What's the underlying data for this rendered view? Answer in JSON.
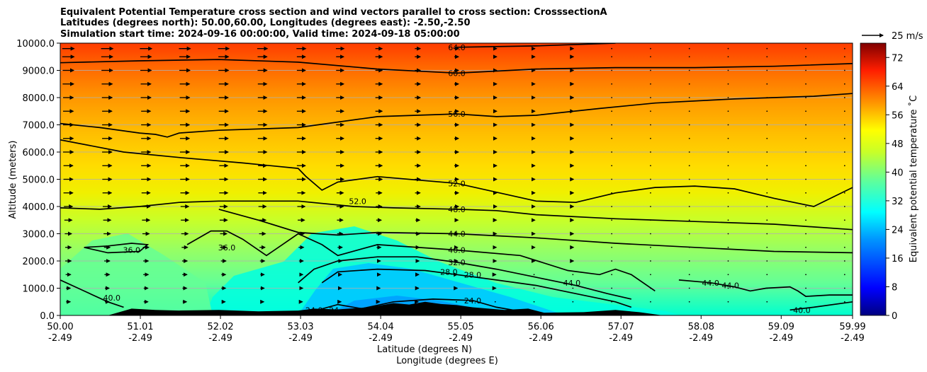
{
  "chart_data": {
    "type": "filled-contour cross section with contour lines and wind vectors",
    "title_lines": [
      "Equivalent Potential Temperature cross section and wind vectors parallel to cross section: CrosssectionA",
      "Latitudes (degrees north): 50.00,60.00, Longitudes (degrees east): -2.50,-2.50",
      "Simulation start time: 2024-09-16 00:00:00, Valid time: 2024-09-18 05:00:00"
    ],
    "xlabel_1": "Latitude (degrees N)",
    "xlabel_2": "Longitude (degrees E)",
    "ylabel": "Altitude (meters)",
    "xlim": [
      50.0,
      59.99
    ],
    "ylim": [
      0,
      10000
    ],
    "x_ticks": [
      {
        "lat": "50.00",
        "lon": "-2.49",
        "value": 50.0
      },
      {
        "lat": "51.01",
        "lon": "-2.49",
        "value": 51.01
      },
      {
        "lat": "52.02",
        "lon": "-2.49",
        "value": 52.02
      },
      {
        "lat": "53.03",
        "lon": "-2.49",
        "value": 53.03
      },
      {
        "lat": "54.04",
        "lon": "-2.49",
        "value": 54.04
      },
      {
        "lat": "55.05",
        "lon": "-2.49",
        "value": 55.05
      },
      {
        "lat": "56.06",
        "lon": "-2.49",
        "value": 56.06
      },
      {
        "lat": "57.07",
        "lon": "-2.49",
        "value": 57.07
      },
      {
        "lat": "58.08",
        "lon": "-2.49",
        "value": 58.08
      },
      {
        "lat": "59.09",
        "lon": "-2.49",
        "value": 59.09
      },
      {
        "lat": "59.99",
        "lon": "-2.49",
        "value": 59.99
      }
    ],
    "y_ticks": [
      {
        "label": "0.0",
        "value": 0
      },
      {
        "label": "1000.0",
        "value": 1000
      },
      {
        "label": "2000.0",
        "value": 2000
      },
      {
        "label": "3000.0",
        "value": 3000
      },
      {
        "label": "4000.0",
        "value": 4000
      },
      {
        "label": "5000.0",
        "value": 5000
      },
      {
        "label": "6000.0",
        "value": 6000
      },
      {
        "label": "7000.0",
        "value": 7000
      },
      {
        "label": "8000.0",
        "value": 8000
      },
      {
        "label": "9000.0",
        "value": 9000
      },
      {
        "label": "10000.0",
        "value": 10000
      }
    ],
    "colorbar": {
      "label": "Equivalent potential temperature ˚C",
      "range": [
        0,
        76
      ],
      "ticks": [
        "0",
        "8",
        "16",
        "24",
        "32",
        "40",
        "48",
        "56",
        "64",
        "72"
      ]
    },
    "quiver_key": {
      "label": "25 m/s",
      "speed": 25
    },
    "contour_labels": [
      {
        "text": "64.0",
        "lat": 55.0,
        "alt": 9850
      },
      {
        "text": "60.0",
        "lat": 55.0,
        "alt": 8900
      },
      {
        "text": "56.0",
        "lat": 55.0,
        "alt": 7400
      },
      {
        "text": "52.0",
        "lat": 55.0,
        "alt": 4850
      },
      {
        "text": "48.0",
        "lat": 55.0,
        "alt": 3900
      },
      {
        "text": "44.0",
        "lat": 55.0,
        "alt": 3000
      },
      {
        "text": "40.0",
        "lat": 55.0,
        "alt": 2400
      },
      {
        "text": "32.0",
        "lat": 55.0,
        "alt": 1950
      },
      {
        "text": "28.0",
        "lat": 54.9,
        "alt": 1600
      },
      {
        "text": "28.0",
        "lat": 55.2,
        "alt": 1500
      },
      {
        "text": "24.0",
        "lat": 55.2,
        "alt": 550
      },
      {
        "text": "24.0",
        "lat": 53.2,
        "alt": 200
      },
      {
        "text": "24",
        "lat": 53.45,
        "alt": 200
      },
      {
        "text": "52.0",
        "lat": 53.75,
        "alt": 4200
      },
      {
        "text": "36.0",
        "lat": 52.1,
        "alt": 2500
      },
      {
        "text": "36.0",
        "lat": 50.9,
        "alt": 2400
      },
      {
        "text": "40.0",
        "lat": 50.65,
        "alt": 650
      },
      {
        "text": "44.0",
        "lat": 56.45,
        "alt": 1200
      },
      {
        "text": "44.0",
        "lat": 58.2,
        "alt": 1200
      },
      {
        "text": "44.0",
        "lat": 58.45,
        "alt": 1100
      },
      {
        "text": "40.0",
        "lat": 59.35,
        "alt": 200
      }
    ],
    "contour_lines": [
      {
        "level": 64,
        "points": [
          [
            55.0,
            9850
          ],
          [
            56.0,
            9900
          ],
          [
            57.0,
            10000
          ]
        ]
      },
      {
        "level": 60,
        "points": [
          [
            50.0,
            9280
          ],
          [
            51.0,
            9350
          ],
          [
            52.0,
            9400
          ],
          [
            53.0,
            9300
          ],
          [
            54.0,
            9050
          ],
          [
            55.0,
            8900
          ],
          [
            56.0,
            9050
          ],
          [
            57.0,
            9100
          ],
          [
            58.0,
            9100
          ],
          [
            59.0,
            9150
          ],
          [
            59.99,
            9250
          ]
        ]
      },
      {
        "level": 56,
        "points": [
          [
            50.0,
            7050
          ],
          [
            50.5,
            6900
          ],
          [
            51.0,
            6700
          ],
          [
            51.2,
            6650
          ],
          [
            51.35,
            6550
          ],
          [
            51.5,
            6700
          ],
          [
            52.0,
            6800
          ],
          [
            53.0,
            6900
          ],
          [
            54.0,
            7300
          ],
          [
            55.0,
            7400
          ],
          [
            55.5,
            7300
          ],
          [
            56.0,
            7350
          ],
          [
            56.8,
            7600
          ],
          [
            57.5,
            7800
          ],
          [
            58.5,
            7950
          ],
          [
            59.5,
            8050
          ],
          [
            59.99,
            8150
          ]
        ]
      },
      {
        "level": 52,
        "points": [
          [
            50.0,
            6450
          ],
          [
            50.8,
            6000
          ],
          [
            51.5,
            5800
          ],
          [
            52.3,
            5600
          ],
          [
            53.0,
            5400
          ],
          [
            53.1,
            5100
          ],
          [
            53.3,
            4600
          ],
          [
            53.5,
            4900
          ],
          [
            54.0,
            5100
          ],
          [
            55.0,
            4850
          ],
          [
            56.0,
            4200
          ],
          [
            56.5,
            4150
          ],
          [
            57.0,
            4500
          ],
          [
            57.5,
            4700
          ],
          [
            58.0,
            4750
          ],
          [
            58.5,
            4650
          ],
          [
            59.0,
            4300
          ],
          [
            59.5,
            4000
          ],
          [
            59.99,
            4700
          ]
        ]
      },
      {
        "level": 48,
        "points": [
          [
            50.0,
            3950
          ],
          [
            50.5,
            3900
          ],
          [
            51.0,
            4000
          ],
          [
            51.5,
            4150
          ],
          [
            52.0,
            4200
          ],
          [
            53.0,
            4200
          ],
          [
            53.7,
            4000
          ],
          [
            54.2,
            3950
          ],
          [
            55.0,
            3900
          ],
          [
            55.5,
            3850
          ],
          [
            56.0,
            3700
          ],
          [
            57.0,
            3550
          ],
          [
            58.0,
            3450
          ],
          [
            59.0,
            3350
          ],
          [
            59.99,
            3150
          ]
        ]
      },
      {
        "level": 44,
        "points": [
          [
            52.0,
            3900
          ],
          [
            52.5,
            3500
          ],
          [
            53.0,
            3050
          ],
          [
            53.5,
            2950
          ],
          [
            54.0,
            3050
          ],
          [
            55.0,
            3000
          ],
          [
            56.0,
            2850
          ],
          [
            57.0,
            2650
          ],
          [
            58.0,
            2500
          ],
          [
            59.0,
            2350
          ],
          [
            59.99,
            2300
          ]
        ]
      },
      {
        "level": 40,
        "points": [
          [
            50.0,
            1300
          ],
          [
            50.3,
            900
          ],
          [
            50.6,
            500
          ],
          [
            50.8,
            300
          ]
        ]
      },
      {
        "level": 40,
        "points": [
          [
            51.6,
            2600
          ],
          [
            51.9,
            3100
          ],
          [
            52.1,
            3100
          ],
          [
            52.3,
            2800
          ],
          [
            52.6,
            2200
          ],
          [
            52.8,
            2600
          ],
          [
            53.0,
            3000
          ],
          [
            53.3,
            2600
          ],
          [
            53.5,
            2200
          ],
          [
            54.0,
            2600
          ],
          [
            55.0,
            2400
          ],
          [
            55.8,
            2200
          ],
          [
            56.4,
            1650
          ],
          [
            56.8,
            1500
          ],
          [
            57.0,
            1700
          ],
          [
            57.2,
            1500
          ],
          [
            57.5,
            900
          ]
        ]
      },
      {
        "level": 36,
        "points": [
          [
            50.3,
            2500
          ],
          [
            50.6,
            2550
          ],
          [
            50.9,
            2650
          ],
          [
            51.1,
            2600
          ],
          [
            51.0,
            2350
          ],
          [
            50.6,
            2300
          ],
          [
            50.3,
            2500
          ]
        ]
      },
      {
        "level": 32,
        "points": [
          [
            53.0,
            1200
          ],
          [
            53.2,
            1700
          ],
          [
            53.5,
            2000
          ],
          [
            54.0,
            2150
          ],
          [
            54.5,
            2150
          ],
          [
            55.0,
            1950
          ],
          [
            55.5,
            1700
          ],
          [
            56.0,
            1400
          ],
          [
            56.5,
            1100
          ],
          [
            56.9,
            800
          ],
          [
            57.2,
            600
          ]
        ]
      },
      {
        "level": 28,
        "points": [
          [
            53.3,
            1200
          ],
          [
            53.5,
            1600
          ],
          [
            54.0,
            1700
          ],
          [
            54.6,
            1650
          ],
          [
            55.0,
            1500
          ],
          [
            55.5,
            1300
          ],
          [
            56.0,
            1100
          ],
          [
            56.5,
            800
          ],
          [
            57.0,
            500
          ],
          [
            57.2,
            300
          ]
        ]
      },
      {
        "level": 24,
        "points": [
          [
            53.25,
            200
          ],
          [
            53.5,
            400
          ],
          [
            53.8,
            250
          ],
          [
            54.2,
            500
          ],
          [
            54.7,
            600
          ],
          [
            55.2,
            550
          ],
          [
            55.5,
            300
          ],
          [
            55.8,
            150
          ]
        ]
      },
      {
        "level": 44,
        "points": [
          [
            57.8,
            1300
          ],
          [
            58.2,
            1200
          ],
          [
            58.5,
            1050
          ],
          [
            58.7,
            900
          ],
          [
            58.9,
            1000
          ],
          [
            59.2,
            1050
          ],
          [
            59.3,
            900
          ],
          [
            59.4,
            700
          ],
          [
            59.7,
            750
          ],
          [
            59.99,
            750
          ]
        ]
      },
      {
        "level": 40,
        "points": [
          [
            59.2,
            200
          ],
          [
            59.5,
            300
          ],
          [
            59.99,
            500
          ]
        ]
      }
    ],
    "terrain_profile": [
      [
        50.0,
        0
      ],
      [
        50.6,
        0
      ],
      [
        50.9,
        250
      ],
      [
        51.2,
        200
      ],
      [
        51.5,
        180
      ],
      [
        52.0,
        200
      ],
      [
        52.5,
        150
      ],
      [
        53.0,
        180
      ],
      [
        53.2,
        250
      ],
      [
        53.5,
        220
      ],
      [
        53.8,
        280
      ],
      [
        54.0,
        350
      ],
      [
        54.2,
        450
      ],
      [
        54.4,
        400
      ],
      [
        54.6,
        500
      ],
      [
        54.8,
        420
      ],
      [
        55.0,
        380
      ],
      [
        55.2,
        300
      ],
      [
        55.4,
        250
      ],
      [
        55.6,
        200
      ],
      [
        55.9,
        250
      ],
      [
        56.1,
        100
      ],
      [
        56.6,
        120
      ],
      [
        57.0,
        200
      ],
      [
        57.3,
        120
      ],
      [
        57.6,
        0
      ],
      [
        59.99,
        0
      ]
    ],
    "wind_rows": [
      {
        "alt": 9800,
        "speeds": [
          14,
          14,
          13,
          11,
          8,
          5,
          2,
          1,
          -1,
          -1,
          -1
        ]
      },
      {
        "alt": 9500,
        "speeds": [
          14,
          13,
          12,
          10,
          8,
          5,
          2,
          1,
          -1,
          -1,
          -1
        ]
      },
      {
        "alt": 9000,
        "speeds": [
          13,
          13,
          12,
          10,
          8,
          5,
          2,
          1,
          -1,
          -1,
          -1
        ]
      },
      {
        "alt": 8500,
        "speeds": [
          13,
          12,
          11,
          10,
          8,
          5,
          2,
          1,
          -1,
          -1,
          -1
        ]
      },
      {
        "alt": 8000,
        "speeds": [
          12,
          12,
          11,
          10,
          8,
          5,
          2,
          1,
          -1,
          -1,
          -1
        ]
      },
      {
        "alt": 7500,
        "speeds": [
          12,
          11,
          11,
          10,
          8,
          5,
          2,
          1,
          0,
          0,
          -1
        ]
      },
      {
        "alt": 7000,
        "speeds": [
          12,
          11,
          11,
          10,
          8,
          5,
          2,
          1,
          0,
          0,
          0
        ]
      },
      {
        "alt": 6500,
        "speeds": [
          12,
          11,
          11,
          10,
          8,
          5,
          2,
          1,
          0,
          0,
          0
        ]
      },
      {
        "alt": 6000,
        "speeds": [
          12,
          11,
          11,
          10,
          8,
          5,
          2,
          1,
          0,
          0,
          0
        ]
      },
      {
        "alt": 5500,
        "speeds": [
          11,
          11,
          10,
          10,
          8,
          5,
          2,
          1,
          0,
          0,
          0
        ]
      },
      {
        "alt": 5000,
        "speeds": [
          11,
          11,
          10,
          10,
          8,
          5,
          2,
          1,
          0,
          0,
          0
        ]
      },
      {
        "alt": 4500,
        "speeds": [
          11,
          10,
          10,
          9,
          7,
          5,
          2,
          1,
          0,
          0,
          0
        ]
      },
      {
        "alt": 4000,
        "speeds": [
          10,
          10,
          9,
          9,
          7,
          5,
          2,
          1,
          0,
          0,
          0
        ]
      },
      {
        "alt": 3500,
        "speeds": [
          9,
          9,
          9,
          8,
          6,
          4,
          2,
          1,
          0,
          0,
          0
        ]
      },
      {
        "alt": 3000,
        "speeds": [
          8,
          8,
          8,
          7,
          6,
          4,
          2,
          1,
          0,
          0,
          0
        ]
      },
      {
        "alt": 2500,
        "speeds": [
          7,
          7,
          7,
          6,
          5,
          3,
          2,
          1,
          0,
          0,
          0
        ]
      },
      {
        "alt": 2000,
        "speeds": [
          7,
          6,
          6,
          5,
          4,
          3,
          2,
          1,
          0,
          0,
          0
        ]
      },
      {
        "alt": 1500,
        "speeds": [
          6,
          6,
          5,
          4,
          4,
          2,
          1,
          1,
          0,
          0,
          0
        ]
      },
      {
        "alt": 1000,
        "speeds": [
          5,
          5,
          5,
          4,
          3,
          2,
          1,
          0,
          0,
          0,
          0
        ]
      },
      {
        "alt": 500,
        "speeds": [
          5,
          5,
          4,
          3,
          2,
          1,
          1,
          0,
          0,
          0,
          0
        ]
      }
    ]
  }
}
